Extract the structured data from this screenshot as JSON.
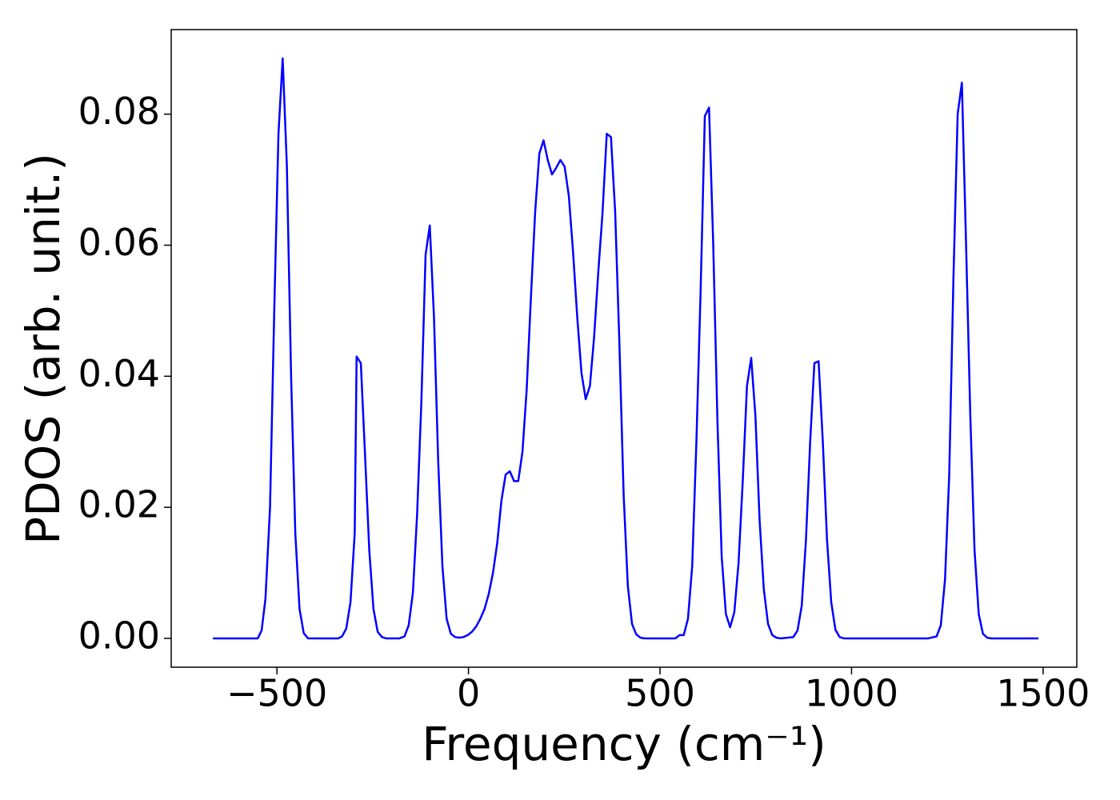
{
  "chart_data": {
    "type": "line",
    "xlabel": "Frequency (cm⁻¹)",
    "ylabel": "PDOS (arb. unit.)",
    "xlim": [
      -776,
      1588
    ],
    "ylim": [
      -0.0044,
      0.0929
    ],
    "xticks": [
      {
        "value": -500,
        "label": "−500"
      },
      0,
      500,
      1000,
      1500
    ],
    "yticks": [
      {
        "value": 0,
        "label": "0.00"
      },
      {
        "value": 0.02,
        "label": "0.02"
      },
      {
        "value": 0.04,
        "label": "0.04"
      },
      {
        "value": 0.06,
        "label": "0.06"
      },
      {
        "value": 0.08,
        "label": "0.08"
      }
    ],
    "x": [
      -667,
      -550,
      -540,
      -530,
      -518,
      -507,
      -496,
      -485,
      -474,
      -463,
      -452,
      -441,
      -430,
      -419,
      -340,
      -330,
      -319,
      -308,
      -297,
      -292,
      -281,
      -270,
      -259,
      -248,
      -237,
      -226,
      -215,
      -180,
      -167,
      -156,
      -145,
      -134,
      -123,
      -112,
      -101,
      -90,
      -79,
      -68,
      -57,
      -46,
      -35,
      -24,
      -13,
      -2,
      9,
      20,
      31,
      42,
      53,
      64,
      75,
      86,
      97,
      108,
      119,
      130,
      141,
      152,
      163,
      174,
      185,
      196,
      207,
      218,
      229,
      240,
      251,
      262,
      273,
      284,
      295,
      306,
      317,
      328,
      339,
      350,
      361,
      372,
      383,
      394,
      405,
      416,
      427,
      438,
      449,
      460,
      540,
      551,
      562,
      573,
      584,
      595,
      606,
      617,
      628,
      639,
      650,
      661,
      672,
      683,
      694,
      705,
      716,
      727,
      738,
      749,
      760,
      771,
      782,
      793,
      804,
      815,
      848,
      859,
      870,
      881,
      892,
      903,
      914,
      925,
      936,
      947,
      958,
      969,
      980,
      1200,
      1222,
      1233,
      1244,
      1255,
      1266,
      1277,
      1288,
      1299,
      1310,
      1321,
      1332,
      1343,
      1354,
      1365,
      1376,
      1488
    ],
    "series": [
      {
        "color": "#0000ff",
        "values": [
          0,
          0,
          0.0012,
          0.006,
          0.02,
          0.05,
          0.077,
          0.0885,
          0.072,
          0.04,
          0.016,
          0.0045,
          0.0008,
          0,
          0,
          0.0003,
          0.0015,
          0.0055,
          0.016,
          0.043,
          0.042,
          0.028,
          0.0135,
          0.0045,
          0.001,
          0.0002,
          0,
          0,
          0.0003,
          0.002,
          0.007,
          0.019,
          0.036,
          0.0585,
          0.063,
          0.049,
          0.027,
          0.011,
          0.003,
          0.0007,
          0.0002,
          0.0001,
          0.0002,
          0.0005,
          0.001,
          0.0018,
          0.003,
          0.0045,
          0.0068,
          0.01,
          0.0145,
          0.021,
          0.025,
          0.0255,
          0.024,
          0.024,
          0.0285,
          0.038,
          0.052,
          0.065,
          0.074,
          0.076,
          0.073,
          0.0708,
          0.0718,
          0.073,
          0.072,
          0.0675,
          0.059,
          0.049,
          0.0405,
          0.0365,
          0.0385,
          0.046,
          0.056,
          0.065,
          0.077,
          0.0765,
          0.065,
          0.045,
          0.022,
          0.008,
          0.0022,
          0.0006,
          0.0001,
          0,
          0,
          0.0005,
          0.0005,
          0.003,
          0.011,
          0.03,
          0.053,
          0.0797,
          0.081,
          0.06,
          0.033,
          0.0125,
          0.0037,
          0.0017,
          0.004,
          0.0115,
          0.024,
          0.0385,
          0.0428,
          0.034,
          0.018,
          0.0075,
          0.0022,
          0.0005,
          0.0001,
          0,
          0.0002,
          0.0012,
          0.005,
          0.015,
          0.03,
          0.042,
          0.0423,
          0.03,
          0.015,
          0.0055,
          0.0013,
          0.0002,
          0,
          0,
          0.0003,
          0.002,
          0.009,
          0.025,
          0.055,
          0.08,
          0.0848,
          0.06,
          0.034,
          0.0135,
          0.0037,
          0.0007,
          0.0001,
          0,
          0,
          0
        ]
      }
    ]
  }
}
